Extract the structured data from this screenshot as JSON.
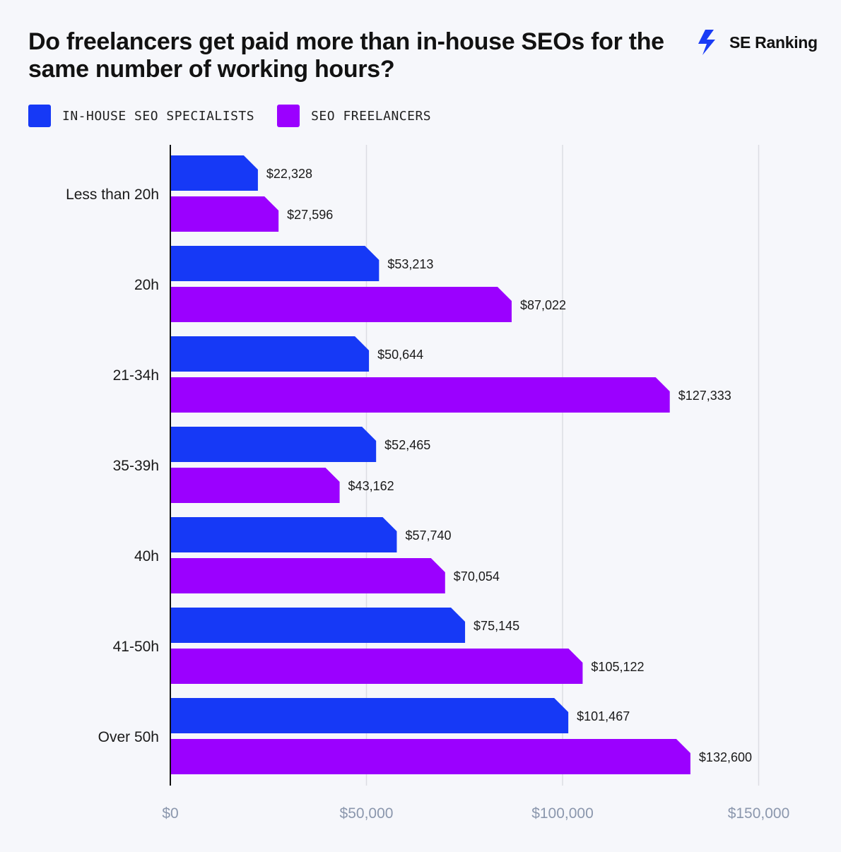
{
  "header": {
    "title": "Do freelancers get paid more than in-house SEOs for the same number of working hours?",
    "brand": "SE Ranking",
    "brand_color": "#1a3cf5"
  },
  "chart_data": {
    "type": "bar",
    "orientation": "horizontal",
    "title": "Do freelancers get paid more than in-house SEOs for the same number of working hours?",
    "categories": [
      "Less than 20h",
      "20h",
      "21-34h",
      "35-39h",
      "40h",
      "41-50h",
      "Over 50h"
    ],
    "series": [
      {
        "name": "IN-HOUSE SEO SPECIALISTS",
        "color": "#1639f6",
        "values": [
          22328,
          53213,
          50644,
          52465,
          57740,
          75145,
          101467
        ],
        "labels": [
          "$22,328",
          "$53,213",
          "$50,644",
          "$52,465",
          "$57,740",
          "$75,145",
          "$101,467"
        ]
      },
      {
        "name": "SEO FREELANCERS",
        "color": "#9b00ff",
        "values": [
          27596,
          87022,
          127333,
          43162,
          70054,
          105122,
          132600
        ],
        "labels": [
          "$27,596",
          "$87,022",
          "$127,333",
          "$43,162",
          "$70,054",
          "$105,122",
          "$132,600"
        ]
      }
    ],
    "xlim": [
      0,
      150000
    ],
    "xticks": [
      0,
      50000,
      100000,
      150000
    ],
    "xtick_labels": [
      "$0",
      "$50,000",
      "$100,000",
      "$150,000"
    ],
    "xlabel": "",
    "ylabel": "",
    "grid": "vertical",
    "legend_position": "top-left"
  }
}
